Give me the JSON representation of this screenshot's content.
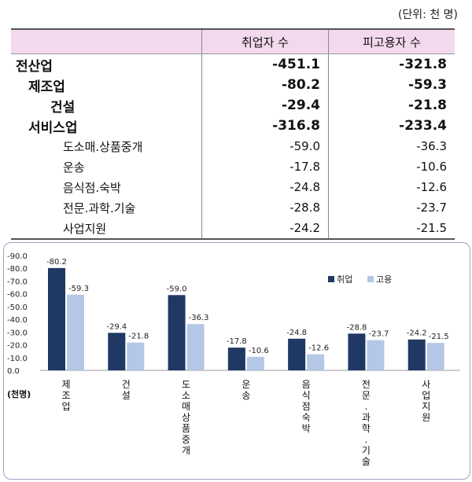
{
  "table": {
    "unit": "(단위: 천 명)",
    "headers": [
      "",
      "취업자 수",
      "피고용자 수"
    ],
    "rows": [
      {
        "label": "전산업",
        "employed": "-451.1",
        "employees": "-321.8",
        "level": 0,
        "bold": true
      },
      {
        "label": "제조업",
        "employed": "-80.2",
        "employees": "-59.3",
        "level": 1,
        "bold": true
      },
      {
        "label": "건설",
        "employed": "-29.4",
        "employees": "-21.8",
        "level": 2,
        "bold": true
      },
      {
        "label": "서비스업",
        "employed": "-316.8",
        "employees": "-233.4",
        "level": 1,
        "bold": true
      },
      {
        "label": "도소매.상품중개",
        "employed": "-59.0",
        "employees": "-36.3",
        "level": 3,
        "bold": false
      },
      {
        "label": "운송",
        "employed": "-17.8",
        "employees": "-10.6",
        "level": 3,
        "bold": false
      },
      {
        "label": "음식점.숙박",
        "employed": "-24.8",
        "employees": "-12.6",
        "level": 3,
        "bold": false
      },
      {
        "label": "전문.과학.기술",
        "employed": "-28.8",
        "employees": "-23.7",
        "level": 3,
        "bold": false
      },
      {
        "label": "사업지원",
        "employed": "-24.2",
        "employees": "-21.5",
        "level": 3,
        "bold": false
      }
    ]
  },
  "chart_data": {
    "type": "bar",
    "categories": [
      "제조업",
      "건설",
      "도소매상품중개",
      "운송",
      "음식점숙박",
      "전문.과학.기술",
      "사업지원"
    ],
    "series": [
      {
        "name": "취업",
        "values": [
          -80.2,
          -29.4,
          -59.0,
          -17.8,
          -24.8,
          -28.8,
          -24.2
        ],
        "color": "#1f3864"
      },
      {
        "name": "고용",
        "values": [
          -59.3,
          -21.8,
          -36.3,
          -10.6,
          -12.6,
          -23.7,
          -21.5
        ],
        "color": "#b4c7e7"
      }
    ],
    "yaxis_ticks": [
      "-90.0",
      "-80.0",
      "-70.0",
      "-60.0",
      "-50.0",
      "-40.0",
      "-30.0",
      "-20.0",
      "-10.0",
      "0.0"
    ],
    "ylabel": "(천명)",
    "ylim": [
      0,
      -90
    ],
    "legend_position": "top-right",
    "grid": false
  }
}
